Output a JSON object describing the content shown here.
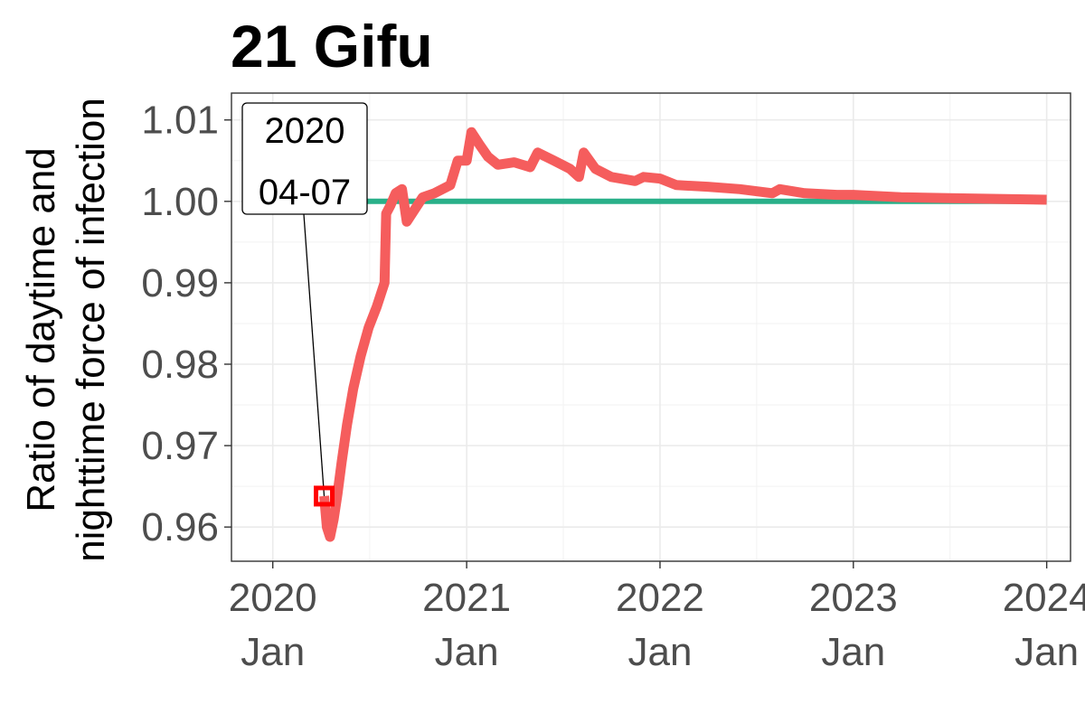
{
  "chart_data": {
    "type": "line",
    "title": "21 Gifu",
    "ylabel_lines": [
      "Ratio of daytime and",
      "nighttime force of infection"
    ],
    "xlabel": "",
    "x_ticks": [
      {
        "value": "2020-01-01",
        "line1": "2020",
        "line2": "Jan"
      },
      {
        "value": "2021-01-01",
        "line1": "2021",
        "line2": "Jan"
      },
      {
        "value": "2022-01-01",
        "line1": "2022",
        "line2": "Jan"
      },
      {
        "value": "2023-01-01",
        "line1": "2023",
        "line2": "Jan"
      },
      {
        "value": "2024-01-01",
        "line1": "2024",
        "line2": "Jan"
      }
    ],
    "y_ticks": [
      0.96,
      0.97,
      0.98,
      0.99,
      1.0,
      1.01
    ],
    "y_tick_labels": [
      "0.96",
      "0.97",
      "0.98",
      "0.99",
      "1.00",
      "1.01"
    ],
    "xlim": [
      "2019-10-15",
      "2024-02-15"
    ],
    "ylim": [
      0.9558,
      1.0133
    ],
    "grid": true,
    "series": [
      {
        "color": "#29b089",
        "points": [
          [
            "2020-04-07",
            1.0
          ],
          [
            "2024-01-01",
            1.0
          ]
        ]
      },
      {
        "color": "#f55d5d",
        "points": [
          [
            "2020-04-07",
            0.9638
          ],
          [
            "2020-04-12",
            0.96
          ],
          [
            "2020-04-18",
            0.9588
          ],
          [
            "2020-04-25",
            0.961
          ],
          [
            "2020-05-02",
            0.964
          ],
          [
            "2020-05-10",
            0.968
          ],
          [
            "2020-05-20",
            0.9725
          ],
          [
            "2020-06-01",
            0.977
          ],
          [
            "2020-06-15",
            0.981
          ],
          [
            "2020-06-30",
            0.9845
          ],
          [
            "2020-07-15",
            0.987
          ],
          [
            "2020-07-30",
            0.99
          ],
          [
            "2020-08-02",
            0.9985
          ],
          [
            "2020-08-10",
            0.9995
          ],
          [
            "2020-08-20",
            1.001
          ],
          [
            "2020-09-01",
            1.0015
          ],
          [
            "2020-09-10",
            0.9975
          ],
          [
            "2020-09-25",
            0.999
          ],
          [
            "2020-10-10",
            1.0005
          ],
          [
            "2020-11-01",
            1.001
          ],
          [
            "2020-12-01",
            1.002
          ],
          [
            "2020-12-15",
            1.005
          ],
          [
            "2021-01-01",
            1.005
          ],
          [
            "2021-01-10",
            1.0085
          ],
          [
            "2021-01-25",
            1.007
          ],
          [
            "2021-02-10",
            1.0055
          ],
          [
            "2021-03-01",
            1.0045
          ],
          [
            "2021-04-01",
            1.0048
          ],
          [
            "2021-05-01",
            1.0042
          ],
          [
            "2021-05-15",
            1.006
          ],
          [
            "2021-06-15",
            1.005
          ],
          [
            "2021-07-15",
            1.004
          ],
          [
            "2021-08-01",
            1.003
          ],
          [
            "2021-08-10",
            1.006
          ],
          [
            "2021-09-01",
            1.004
          ],
          [
            "2021-10-01",
            1.003
          ],
          [
            "2021-11-15",
            1.0025
          ],
          [
            "2021-12-01",
            1.003
          ],
          [
            "2022-01-01",
            1.0028
          ],
          [
            "2022-02-01",
            1.002
          ],
          [
            "2022-04-01",
            1.0018
          ],
          [
            "2022-06-01",
            1.0015
          ],
          [
            "2022-08-01",
            1.001
          ],
          [
            "2022-08-15",
            1.0015
          ],
          [
            "2022-10-01",
            1.001
          ],
          [
            "2022-12-01",
            1.0008
          ],
          [
            "2023-01-01",
            1.0008
          ],
          [
            "2023-04-01",
            1.0005
          ],
          [
            "2023-07-01",
            1.0004
          ],
          [
            "2023-10-01",
            1.0003
          ],
          [
            "2024-01-01",
            1.0002
          ]
        ]
      }
    ],
    "annotation": {
      "lines": [
        "2020",
        "04-07"
      ],
      "point": [
        "2020-04-07",
        0.9638
      ],
      "marker_color": "#ff0000"
    }
  }
}
